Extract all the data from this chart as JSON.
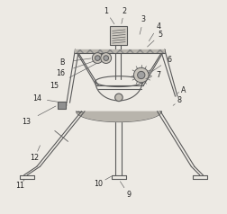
{
  "bg_color": "#edeae4",
  "line_color": "#5a5a5a",
  "label_color": "#222222",
  "fig_width": 2.52,
  "fig_height": 2.38,
  "dpi": 100
}
